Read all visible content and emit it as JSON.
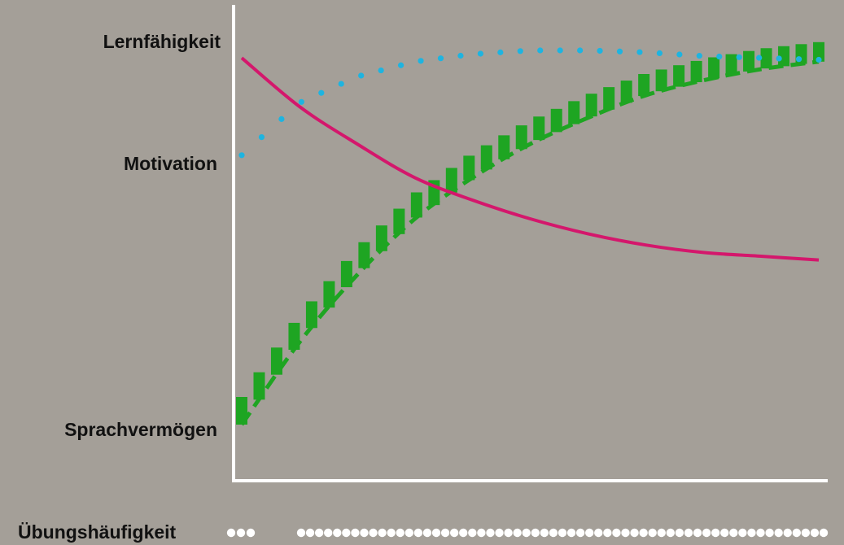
{
  "chart_data": {
    "type": "line",
    "title": "",
    "x_axis": {
      "label": "Übungshäufigkeit",
      "range": [
        0,
        1
      ]
    },
    "y_axis": {
      "tick_labels": [
        "Lernfähigkeit",
        "Motivation",
        "Sprachvermögen"
      ],
      "range": [
        0,
        1
      ]
    },
    "grid": false,
    "x": [
      0.0,
      0.1,
      0.2,
      0.3,
      0.4,
      0.5,
      0.6,
      0.7,
      0.8,
      0.9,
      1.0
    ],
    "series": [
      {
        "style": "solid",
        "color": "#d4176c",
        "values": [
          0.98,
          0.85,
          0.75,
          0.66,
          0.6,
          0.55,
          0.51,
          0.48,
          0.46,
          0.45,
          0.44
        ]
      },
      {
        "style": "dotted",
        "color": "#1eb4e0",
        "values": [
          0.72,
          0.86,
          0.93,
          0.97,
          0.99,
          1.0,
          1.0,
          0.995,
          0.985,
          0.98,
          0.975
        ]
      },
      {
        "style": "dashed-stepped",
        "color": "#1ea522",
        "values": [
          0.0,
          0.22,
          0.4,
          0.55,
          0.66,
          0.75,
          0.82,
          0.88,
          0.92,
          0.95,
          0.97
        ]
      }
    ],
    "x_axis_dots": {
      "color": "#ffffff",
      "left_group_count": 3,
      "right_group_count": 59
    }
  }
}
